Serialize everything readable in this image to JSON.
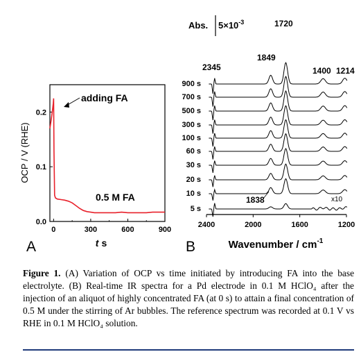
{
  "chart_data": [
    {
      "panel_label": "A",
      "type": "line",
      "xlabel_main": "t",
      "xlabel_unit": "s",
      "ylabel": "OCP / V (RHE)",
      "xlim": [
        -30,
        900
      ],
      "ylim": [
        0.0,
        0.25
      ],
      "xticks": [
        "0",
        "300",
        "600",
        "900"
      ],
      "yticks": [
        "0.0",
        "0.1",
        "0.2"
      ],
      "annotations": [
        {
          "text": "adding FA",
          "x": 0,
          "y": 0.225,
          "arrow": true
        },
        {
          "text": "0.5 M FA"
        }
      ],
      "series": [
        {
          "x": [
            -30,
            -20,
            -10,
            -3,
            0,
            3,
            8,
            15,
            30,
            60,
            90,
            120,
            150,
            180,
            210,
            240,
            270,
            300,
            330,
            360,
            400,
            450,
            500,
            550,
            600,
            650,
            700,
            750,
            800,
            850,
            900
          ],
          "y": [
            0.17,
            0.185,
            0.202,
            0.215,
            0.225,
            0.13,
            0.048,
            0.043,
            0.041,
            0.04,
            0.039,
            0.037,
            0.034,
            0.029,
            0.024,
            0.02,
            0.018,
            0.017,
            0.016,
            0.016,
            0.016,
            0.016,
            0.016,
            0.017,
            0.016,
            0.016,
            0.016,
            0.016,
            0.017,
            0.017,
            0.017
          ]
        }
      ]
    },
    {
      "panel_label": "B",
      "type": "line",
      "xlabel_main": "Wavenumber / cm",
      "xlabel_sup": "-1",
      "xlim": [
        2400,
        1200
      ],
      "xticks": [
        "2400",
        "2000",
        "1600",
        "1200"
      ],
      "scale_bar": {
        "label": "Abs.",
        "value": "5×10",
        "sup": "-3"
      },
      "peak_labels": [
        "2345",
        "1849",
        "1720",
        "1400",
        "1214",
        "1838"
      ],
      "scale_note": "x10",
      "series": [
        {
          "name": "900 s",
          "scale": 1.0
        },
        {
          "name": "700 s",
          "scale": 0.97
        },
        {
          "name": "500 s",
          "scale": 0.94
        },
        {
          "name": "300 s",
          "scale": 0.9
        },
        {
          "name": "100 s",
          "scale": 0.86
        },
        {
          "name": "60 s",
          "scale": 0.82
        },
        {
          "name": "30 s",
          "scale": 0.78
        },
        {
          "name": "20 s",
          "scale": 0.74
        },
        {
          "name": "10 s",
          "scale": 0.7
        },
        {
          "name": "5 s",
          "scale": 0.25
        }
      ]
    }
  ],
  "caption": {
    "label": "Figure 1.",
    "text": " (A) Variation of OCP vs time initiated by introducing FA into the base electrolyte. (B) Real-time IR spectra for a Pd electrode in 0.1 M HClO₄ after the injection of an aliquot of highly concentrated FA (at 0 s) to attain a final concentration of 0.5 M under the stirring of Ar bubbles. The reference spectrum was recorded at 0.1 V vs RHE in 0.1 M HClO₄ solution."
  }
}
